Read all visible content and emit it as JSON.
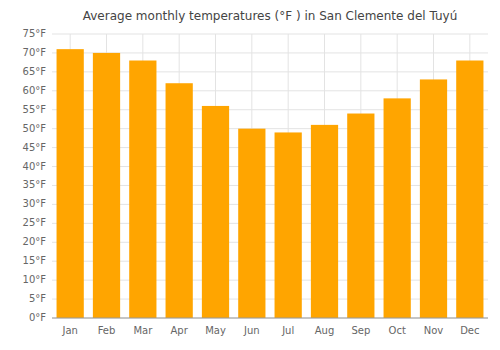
{
  "chart_data": {
    "type": "bar",
    "title": "Average monthly temperatures (°F ) in San Clemente del Tuyú",
    "categories": [
      "Jan",
      "Feb",
      "Mar",
      "Apr",
      "May",
      "Jun",
      "Jul",
      "Aug",
      "Sep",
      "Oct",
      "Nov",
      "Dec"
    ],
    "values": [
      71,
      70,
      68,
      62,
      56,
      50,
      49,
      51,
      54,
      58,
      63,
      68
    ],
    "color": "#FFA500",
    "ylim": [
      0,
      75
    ],
    "yticks": [
      {
        "value": 0,
        "label": "0°F"
      },
      {
        "value": 5,
        "label": "5°F"
      },
      {
        "value": 10,
        "label": "10°F"
      },
      {
        "value": 15,
        "label": "15°F"
      },
      {
        "value": 20,
        "label": "20°F"
      },
      {
        "value": 25,
        "label": "25°F"
      },
      {
        "value": 30,
        "label": "30°F"
      },
      {
        "value": 35,
        "label": "35°F"
      },
      {
        "value": 40,
        "label": "40°F"
      },
      {
        "value": 45,
        "label": "45°F"
      },
      {
        "value": 50,
        "label": "50°F"
      },
      {
        "value": 55,
        "label": "55°F"
      },
      {
        "value": 60,
        "label": "60°F"
      },
      {
        "value": 65,
        "label": "65°F"
      },
      {
        "value": 70,
        "label": "70°F"
      },
      {
        "value": 75,
        "label": "75°F"
      }
    ],
    "grid": true
  }
}
